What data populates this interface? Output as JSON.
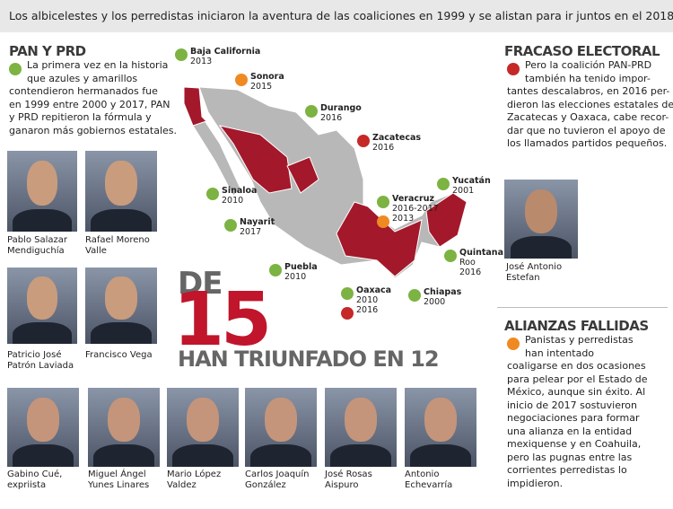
{
  "header": {
    "title": "Los albicelestes y los perredistas iniciaron la aventura de las coaliciones en 1999 y se alistan para ir juntos en el 2018"
  },
  "left": {
    "heading": "PAN Y PRD",
    "lines": [
      "La primera vez en la historia",
      "que azules y amarillos",
      "contendieron hermanados fue",
      "en 1999 entre 2000 y 2017, PAN",
      "y PRD repitieron la fórmula y",
      "ganaron más gobiernos estatales."
    ],
    "people": [
      [
        "Pablo Salazar",
        "Mendiguchía"
      ],
      [
        "Rafael Moreno",
        "Valle"
      ],
      [
        "Patricio José",
        "Patrón Laviada"
      ],
      [
        "Francisco Vega"
      ]
    ]
  },
  "map": {
    "labels": [
      {
        "name": "Baja California",
        "years": [
          "2013"
        ]
      },
      {
        "name": "Sonora",
        "years": [
          "2015"
        ]
      },
      {
        "name": "Durango",
        "years": [
          "2016"
        ]
      },
      {
        "name": "Zacatecas",
        "years": [
          "2016"
        ]
      },
      {
        "name": "Sinaloa",
        "years": [
          "2010"
        ]
      },
      {
        "name": "Nayarit",
        "years": [
          "2017"
        ]
      },
      {
        "name": "Yucatán",
        "years": [
          "2001"
        ]
      },
      {
        "name": "Veracruz",
        "years": [
          "2016-2017",
          "2013"
        ]
      },
      {
        "name": "Quintana",
        "years": [
          "Roo",
          "2016"
        ]
      },
      {
        "name": "Puebla",
        "years": [
          "2010"
        ]
      },
      {
        "name": "Oaxaca",
        "years": [
          "2010",
          "2016"
        ]
      },
      {
        "name": "Chiapas",
        "years": [
          "2000"
        ]
      }
    ]
  },
  "big": {
    "top": "DE",
    "number": "15",
    "bottom": "HAN TRIUNFADO EN 12"
  },
  "right": {
    "heading": "FRACASO ELECTORAL",
    "lines": [
      "Pero la coalición PAN-PRD",
      "también ha tenido impor-",
      "tantes descalabros, en 2016 per-",
      "dieron las elecciones estatales de",
      "Zacatecas y Oaxaca, cabe recor-",
      "dar que no tuvieron el apoyo de",
      "los llamados partidos pequeños."
    ],
    "person": [
      "José Antonio",
      "Estefan"
    ],
    "heading2": "ALIANZAS FALLIDAS",
    "lines2": [
      "Panistas y perredistas",
      "han intentado",
      "coaligarse en dos ocasiones",
      "para pelear por el Estado de",
      "México, aunque sin éxito. Al",
      "inicio de 2017 sostuvieron",
      "negociaciones para formar",
      "una alianza en la entidad",
      "mexiquense y en Coahuila,",
      "pero las pugnas entre las",
      "corrientes perredistas lo",
      "impidieron."
    ]
  },
  "bottom": {
    "people": [
      [
        "Gabino Cué,",
        "expriista"
      ],
      [
        "Miguel Ángel",
        "Yunes Linares"
      ],
      [
        "Mario López",
        "Valdez"
      ],
      [
        "Carlos Joaquín",
        "González"
      ],
      [
        "José Rosas",
        "Aispuro"
      ],
      [
        "Antonio",
        "Echevarría"
      ]
    ]
  }
}
